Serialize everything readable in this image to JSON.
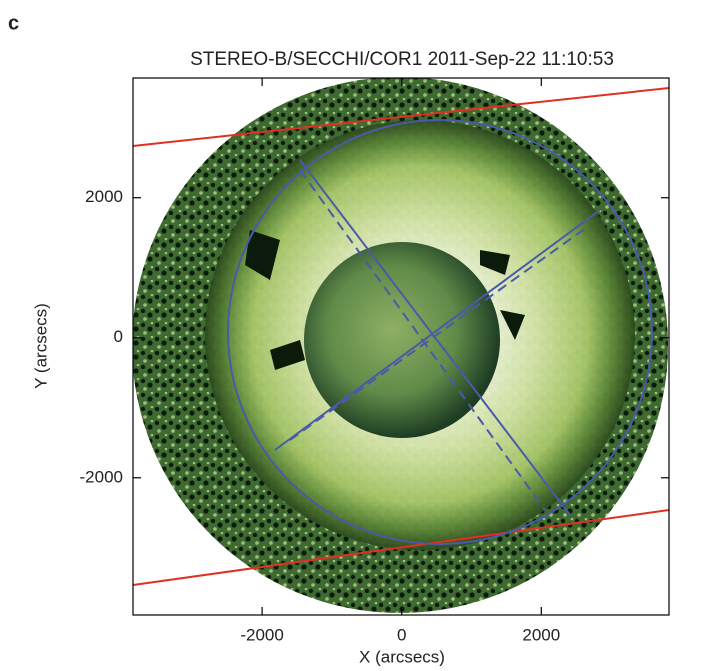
{
  "chart_data": {
    "type": "image",
    "panel_label": "c",
    "title": "STEREO-B/SECCHI/COR1 2011-Sep-22 11:10:53",
    "x_label": "X (arcsecs)",
    "y_label": "Y (arcsecs)",
    "xlim": [
      -3850,
      3830
    ],
    "ylim": [
      -3960,
      3710
    ],
    "xticks": [
      -2000,
      0,
      2000
    ],
    "yticks": [
      -2000,
      0,
      2000
    ]
  }
}
